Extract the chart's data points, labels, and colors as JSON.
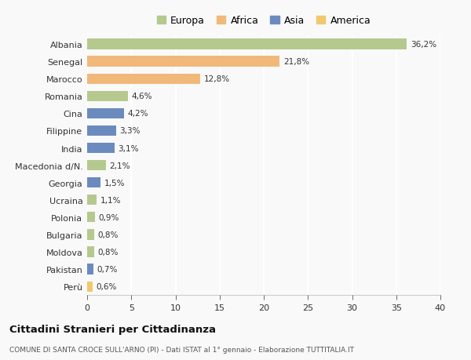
{
  "countries": [
    "Albania",
    "Senegal",
    "Marocco",
    "Romania",
    "Cina",
    "Filippine",
    "India",
    "Macedonia d/N.",
    "Georgia",
    "Ucraina",
    "Polonia",
    "Bulgaria",
    "Moldova",
    "Pakistan",
    "Perù"
  ],
  "values": [
    36.2,
    21.8,
    12.8,
    4.6,
    4.2,
    3.3,
    3.1,
    2.1,
    1.5,
    1.1,
    0.9,
    0.8,
    0.8,
    0.7,
    0.6
  ],
  "labels": [
    "36,2%",
    "21,8%",
    "12,8%",
    "4,6%",
    "4,2%",
    "3,3%",
    "3,1%",
    "2,1%",
    "1,5%",
    "1,1%",
    "0,9%",
    "0,8%",
    "0,8%",
    "0,7%",
    "0,6%"
  ],
  "colors": [
    "#b5c98e",
    "#f0b97a",
    "#f0b97a",
    "#b5c98e",
    "#6b8bbf",
    "#6b8bbf",
    "#6b8bbf",
    "#b5c98e",
    "#6b8bbf",
    "#b5c98e",
    "#b5c98e",
    "#b5c98e",
    "#b5c98e",
    "#6b8bbf",
    "#f0c96e"
  ],
  "legend": {
    "Europa": "#b5c98e",
    "Africa": "#f0b97a",
    "Asia": "#6b8bbf",
    "America": "#f0c96e"
  },
  "title": "Cittadini Stranieri per Cittadinanza",
  "subtitle": "COMUNE DI SANTA CROCE SULL'ARNO (PI) - Dati ISTAT al 1° gennaio - Elaborazione TUTTITALIA.IT",
  "xlim": [
    0,
    40
  ],
  "xticks": [
    0,
    5,
    10,
    15,
    20,
    25,
    30,
    35,
    40
  ],
  "background_color": "#f9f9f9",
  "grid_color": "#ffffff",
  "bar_height": 0.6
}
